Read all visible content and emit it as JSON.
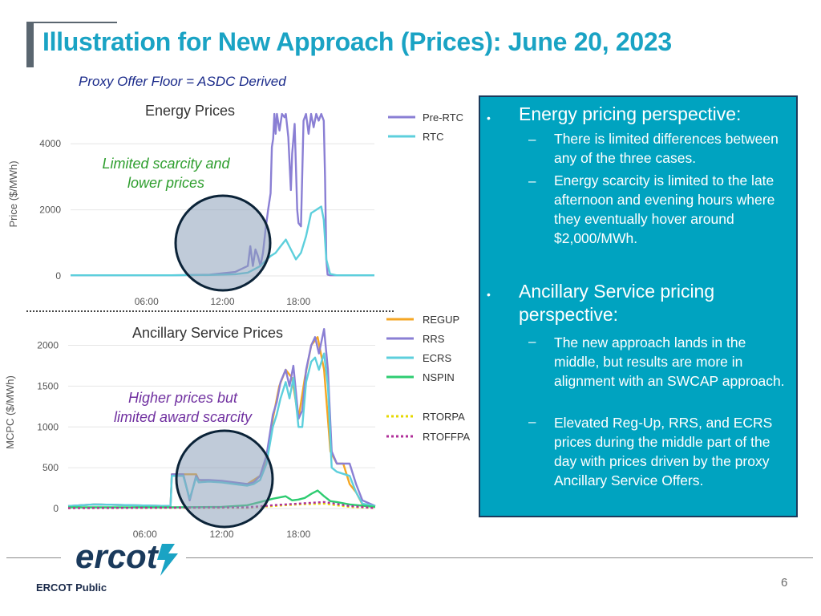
{
  "header": {
    "title": "Illustration for New Approach (Prices): June 20, 2023",
    "subtitle": "Proxy Offer Floor = ASDC Derived"
  },
  "colors": {
    "title": "#1aa3c4",
    "panel_bg": "#00a3c0",
    "annotation_green": "#2e9e2e",
    "annotation_purple": "#7030a0",
    "pre_rtc": "#8a7fd4",
    "rtc": "#5dcfdc",
    "regup": "#f5a623",
    "rrs": "#8a7fd4",
    "ecrs": "#5dcfdc",
    "nspin": "#2ecc71",
    "rtorpa": "#e6d800",
    "rtoffpa": "#b0309a"
  },
  "chart_data": [
    {
      "type": "line",
      "title": "Energy Prices",
      "xlabel": "",
      "ylabel": "Price ($/MWh)",
      "xlim": [
        0,
        24
      ],
      "ylim": [
        0,
        5000
      ],
      "x_ticks": [
        6,
        12,
        18
      ],
      "x_tick_labels": [
        "06:00",
        "12:00",
        "18:00"
      ],
      "y_ticks": [
        0,
        2000,
        4000
      ],
      "y_tick_labels": [
        "0",
        "2000",
        "4000"
      ],
      "annotation": "Limited scarcity and lower prices",
      "series": [
        {
          "name": "Pre-RTC",
          "x": [
            0,
            8,
            11,
            13,
            14,
            14.2,
            14.4,
            14.6,
            14.8,
            15.0,
            15.2,
            15.4,
            15.6,
            15.8,
            15.9,
            16.0,
            16.1,
            16.2,
            16.3,
            16.5,
            16.7,
            16.9,
            17.0,
            17.2,
            17.4,
            17.5,
            17.7,
            17.9,
            18.0,
            18.2,
            18.4,
            18.6,
            18.8,
            19.0,
            19.2,
            19.4,
            19.6,
            19.8,
            20.0,
            20.1,
            20.2,
            20.3,
            20.5,
            21.0,
            24
          ],
          "values": [
            20,
            20,
            40,
            120,
            300,
            900,
            300,
            800,
            600,
            300,
            700,
            1400,
            2000,
            2500,
            3900,
            4150,
            4900,
            4300,
            4900,
            4400,
            4900,
            4800,
            4900,
            4200,
            2600,
            3700,
            4600,
            2000,
            1600,
            1500,
            4700,
            4900,
            4300,
            4900,
            4500,
            4900,
            4700,
            4900,
            4700,
            3000,
            500,
            40,
            20,
            20,
            20
          ]
        },
        {
          "name": "RTC",
          "x": [
            0,
            8,
            11,
            13,
            14,
            14.5,
            15.0,
            15.5,
            15.8,
            16.2,
            16.6,
            17.0,
            17.4,
            17.8,
            18.2,
            18.6,
            19.0,
            19.4,
            19.8,
            20.0,
            20.2,
            20.5,
            21.0,
            24
          ],
          "values": [
            20,
            20,
            30,
            50,
            100,
            200,
            300,
            500,
            600,
            700,
            900,
            1100,
            800,
            500,
            700,
            1200,
            1900,
            2000,
            2100,
            1700,
            500,
            60,
            20,
            20
          ]
        }
      ],
      "legend": [
        "Pre-RTC",
        "RTC"
      ]
    },
    {
      "type": "line",
      "title": "Ancillary Service Prices",
      "xlabel": "",
      "ylabel": "MCPC ($/MWh)",
      "xlim": [
        0,
        24
      ],
      "ylim": [
        0,
        2300
      ],
      "x_ticks": [
        6,
        12,
        18
      ],
      "x_tick_labels": [
        "06:00",
        "12:00",
        "18:00"
      ],
      "y_ticks": [
        0,
        500,
        1000,
        1500,
        2000
      ],
      "y_tick_labels": [
        "0",
        "500",
        "1000",
        "1500",
        "2000"
      ],
      "annotation": "Higher prices but limited award scarcity",
      "series": [
        {
          "name": "REGUP",
          "x": [
            0,
            2,
            8,
            8.1,
            10,
            10.2,
            14,
            14.5,
            15,
            15.5,
            16,
            16.5,
            17,
            17.5,
            18,
            18.5,
            19,
            19.5,
            20,
            20.5,
            21,
            21.5,
            22,
            22.5,
            23,
            24
          ],
          "values": [
            30,
            50,
            30,
            420,
            420,
            350,
            300,
            350,
            400,
            600,
            1100,
            1500,
            1700,
            1600,
            1100,
            1600,
            2000,
            2100,
            1700,
            700,
            550,
            550,
            300,
            200,
            50,
            30
          ]
        },
        {
          "name": "RRS",
          "x": [
            0,
            2,
            8,
            8.1,
            9,
            9.5,
            10,
            10.2,
            11,
            12,
            13,
            14,
            14.5,
            15,
            15.5,
            16,
            16.3,
            16.6,
            17,
            17.3,
            17.6,
            18,
            18.3,
            18.6,
            19,
            19.3,
            19.6,
            20,
            20.3,
            20.6,
            21,
            22,
            22.5,
            23,
            24
          ],
          "values": [
            30,
            50,
            30,
            420,
            420,
            100,
            400,
            350,
            350,
            340,
            320,
            300,
            320,
            400,
            650,
            1150,
            1300,
            1550,
            1700,
            1500,
            1750,
            1100,
            1200,
            1700,
            2000,
            2100,
            1900,
            2200,
            1700,
            700,
            550,
            550,
            300,
            100,
            30
          ]
        },
        {
          "name": "ECRS",
          "x": [
            0,
            2,
            8,
            8.1,
            9,
            9.5,
            10,
            10.2,
            11,
            12,
            13,
            14,
            14.5,
            15,
            15.5,
            16,
            16.3,
            16.6,
            17,
            17.3,
            17.6,
            18,
            18.3,
            18.6,
            19,
            19.3,
            19.6,
            20,
            20.3,
            20.6,
            21,
            22,
            22.5,
            23,
            24
          ],
          "values": [
            30,
            50,
            30,
            400,
            400,
            120,
            380,
            320,
            330,
            320,
            300,
            280,
            300,
            350,
            550,
            1000,
            1150,
            1350,
            1550,
            1350,
            1600,
            1000,
            1000,
            1550,
            1800,
            1850,
            1700,
            1900,
            1500,
            500,
            450,
            400,
            200,
            60,
            30
          ]
        },
        {
          "name": "NSPIN",
          "x": [
            0,
            8,
            12,
            14,
            15,
            16,
            17,
            17.5,
            18,
            18.5,
            19,
            19.5,
            20,
            20.5,
            21,
            22,
            24
          ],
          "values": [
            15,
            15,
            20,
            40,
            80,
            120,
            150,
            100,
            110,
            130,
            180,
            220,
            150,
            90,
            80,
            50,
            20
          ]
        },
        {
          "name": "RTORPA",
          "x": [
            0,
            14,
            16,
            18,
            20,
            22,
            24
          ],
          "values": [
            5,
            10,
            30,
            50,
            60,
            20,
            5
          ]
        },
        {
          "name": "RTOFFPA",
          "x": [
            0,
            14,
            16,
            18,
            20,
            22,
            24
          ],
          "values": [
            5,
            15,
            40,
            60,
            80,
            30,
            5
          ]
        }
      ],
      "legend": [
        "REGUP",
        "RRS",
        "ECRS",
        "NSPIN",
        "RTORPA",
        "RTOFFPA"
      ]
    }
  ],
  "panel": {
    "bullet1": {
      "symbol": "•",
      "title": "Energy pricing perspective:",
      "items": [
        "There is limited differences between any of the three cases.",
        "Energy scarcity is limited to the late afternoon and evening hours where they eventually hover around $2,000/MWh."
      ]
    },
    "bullet2": {
      "symbol": "•",
      "title": "Ancillary Service pricing perspective:",
      "items": [
        "The new approach lands in the middle, but results are more in alignment with an SWCAP approach.",
        "Elevated Reg-Up, RRS, and ECRS prices during the middle part of the day with prices driven by the proxy Ancillary Service Offers."
      ]
    },
    "dash_symbol": "–"
  },
  "footer": {
    "logo_text": "ercot",
    "label": "ERCOT Public",
    "page_number": "6"
  }
}
